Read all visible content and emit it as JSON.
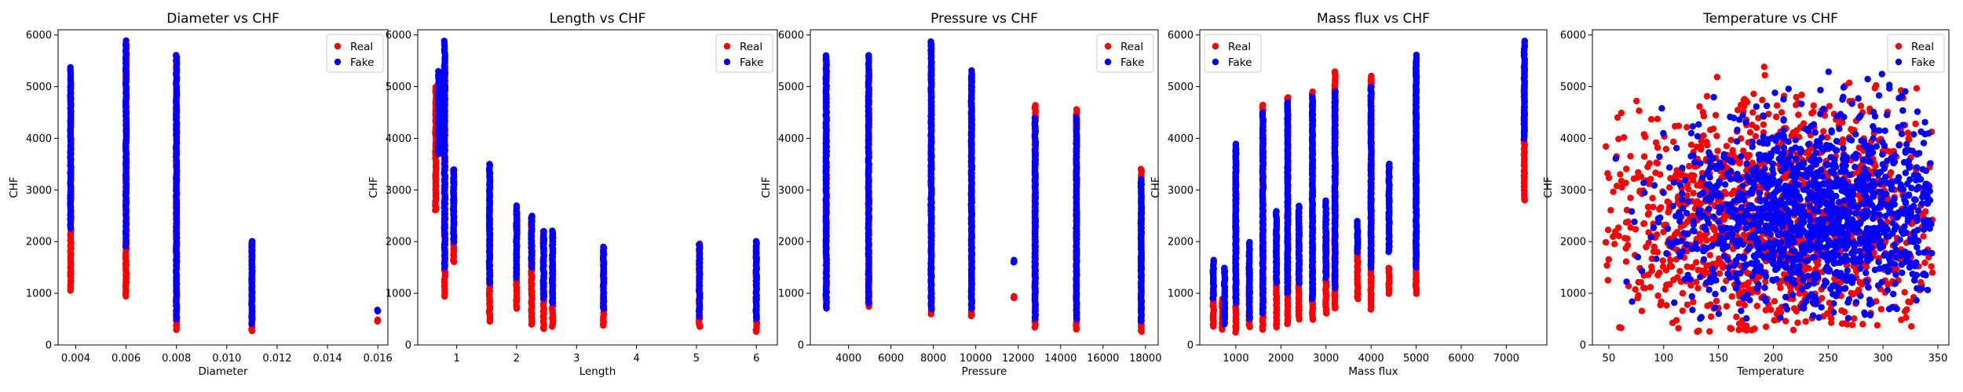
{
  "figure": {
    "background": "#ffffff"
  },
  "legend": {
    "placement_left_panels": "upper-right",
    "placement_mass_flux": "upper-left"
  },
  "colors": {
    "Real": "#ff0000",
    "Fake": "#0000ff"
  },
  "chart_data": [
    {
      "type": "scatter",
      "title": "Diameter vs CHF",
      "xlabel": "Diameter",
      "ylabel": "CHF",
      "xlim": [
        0.0033,
        0.0164
      ],
      "ylim": [
        0,
        6100
      ],
      "xticks": [
        0.004,
        0.006,
        0.008,
        0.01,
        0.012,
        0.014,
        0.016
      ],
      "xtick_labels": [
        "0.004",
        "0.006",
        "0.008",
        "0.010",
        "0.012",
        "0.014",
        "0.016"
      ],
      "yticks": [
        0,
        1000,
        2000,
        3000,
        4000,
        5000,
        6000
      ],
      "ytick_labels": [
        "0",
        "1000",
        "2000",
        "3000",
        "4000",
        "5000",
        "6000"
      ],
      "legend_position": "upper-right",
      "series": [
        {
          "name": "Real",
          "color": "#ff0000",
          "columns": [
            {
              "x": 0.0038,
              "ymin": 1050,
              "ymax": 5000
            },
            {
              "x": 0.006,
              "ymin": 950,
              "ymax": 5800
            },
            {
              "x": 0.008,
              "ymin": 300,
              "ymax": 5600
            },
            {
              "x": 0.011,
              "ymin": 280,
              "ymax": 2000
            },
            {
              "x": 0.016,
              "ymin": 460,
              "ymax": 480
            }
          ]
        },
        {
          "name": "Fake",
          "color": "#0000ff",
          "columns": [
            {
              "x": 0.0038,
              "ymin": 2250,
              "ymax": 5380
            },
            {
              "x": 0.006,
              "ymin": 1900,
              "ymax": 5880
            },
            {
              "x": 0.008,
              "ymin": 500,
              "ymax": 5600
            },
            {
              "x": 0.011,
              "ymin": 400,
              "ymax": 2000
            },
            {
              "x": 0.016,
              "ymin": 660,
              "ymax": 680
            }
          ]
        }
      ]
    },
    {
      "type": "scatter",
      "title": "Length vs CHF",
      "xlabel": "Length",
      "ylabel": "CHF",
      "xlim": [
        0.35,
        6.35
      ],
      "ylim": [
        0,
        6100
      ],
      "xticks": [
        1,
        2,
        3,
        4,
        5,
        6
      ],
      "xtick_labels": [
        "1",
        "2",
        "3",
        "4",
        "5",
        "6"
      ],
      "yticks": [
        0,
        1000,
        2000,
        3000,
        4000,
        5000,
        6000
      ],
      "ytick_labels": [
        "0",
        "1000",
        "2000",
        "3000",
        "4000",
        "5000",
        "6000"
      ],
      "legend_position": "upper-right",
      "series": [
        {
          "name": "Real",
          "color": "#ff0000",
          "columns": [
            {
              "x": 0.65,
              "ymin": 2600,
              "ymax": 5000
            },
            {
              "x": 0.8,
              "ymin": 950,
              "ymax": 5400
            },
            {
              "x": 0.95,
              "ymin": 1600,
              "ymax": 3400
            },
            {
              "x": 1.55,
              "ymin": 450,
              "ymax": 3400
            },
            {
              "x": 2.0,
              "ymin": 700,
              "ymax": 2600
            },
            {
              "x": 2.25,
              "ymin": 400,
              "ymax": 2500
            },
            {
              "x": 2.45,
              "ymin": 300,
              "ymax": 2200
            },
            {
              "x": 2.6,
              "ymin": 350,
              "ymax": 2200
            },
            {
              "x": 3.45,
              "ymin": 380,
              "ymax": 1850
            },
            {
              "x": 5.05,
              "ymin": 350,
              "ymax": 1950
            },
            {
              "x": 6.0,
              "ymin": 260,
              "ymax": 2000
            }
          ]
        },
        {
          "name": "Fake",
          "color": "#0000ff",
          "columns": [
            {
              "x": 0.7,
              "ymin": 3700,
              "ymax": 5300
            },
            {
              "x": 0.8,
              "ymin": 1500,
              "ymax": 5880
            },
            {
              "x": 0.95,
              "ymin": 2000,
              "ymax": 3400
            },
            {
              "x": 1.55,
              "ymin": 1200,
              "ymax": 3500
            },
            {
              "x": 2.0,
              "ymin": 1300,
              "ymax": 2700
            },
            {
              "x": 2.25,
              "ymin": 1500,
              "ymax": 2500
            },
            {
              "x": 2.45,
              "ymin": 900,
              "ymax": 2200
            },
            {
              "x": 2.6,
              "ymin": 800,
              "ymax": 2200
            },
            {
              "x": 3.45,
              "ymin": 700,
              "ymax": 1900
            },
            {
              "x": 5.05,
              "ymin": 550,
              "ymax": 1950
            },
            {
              "x": 6.0,
              "ymin": 500,
              "ymax": 2000
            }
          ]
        }
      ]
    },
    {
      "type": "scatter",
      "title": "Pressure vs CHF",
      "xlabel": "Pressure",
      "ylabel": "CHF",
      "xlim": [
        2200,
        18600
      ],
      "ylim": [
        0,
        6100
      ],
      "xticks": [
        4000,
        6000,
        8000,
        10000,
        12000,
        14000,
        16000,
        18000
      ],
      "xtick_labels": [
        "4000",
        "6000",
        "8000",
        "10000",
        "12000",
        "14000",
        "16000",
        "18000"
      ],
      "yticks": [
        0,
        1000,
        2000,
        3000,
        4000,
        5000,
        6000
      ],
      "ytick_labels": [
        "0",
        "1000",
        "2000",
        "3000",
        "4000",
        "5000",
        "6000"
      ],
      "legend_position": "upper-right",
      "series": [
        {
          "name": "Real",
          "color": "#ff0000",
          "columns": [
            {
              "x": 2950,
              "ymin": 700,
              "ymax": 5500
            },
            {
              "x": 4950,
              "ymin": 750,
              "ymax": 5200
            },
            {
              "x": 7900,
              "ymin": 600,
              "ymax": 5850
            },
            {
              "x": 9800,
              "ymin": 550,
              "ymax": 5200
            },
            {
              "x": 11800,
              "ymin": 900,
              "ymax": 940
            },
            {
              "x": 12800,
              "ymin": 350,
              "ymax": 4650
            },
            {
              "x": 14750,
              "ymin": 300,
              "ymax": 4550
            },
            {
              "x": 17800,
              "ymin": 250,
              "ymax": 3400
            }
          ]
        },
        {
          "name": "Fake",
          "color": "#0000ff",
          "columns": [
            {
              "x": 2950,
              "ymin": 700,
              "ymax": 5600
            },
            {
              "x": 4950,
              "ymin": 800,
              "ymax": 5600
            },
            {
              "x": 7900,
              "ymin": 700,
              "ymax": 5880
            },
            {
              "x": 9800,
              "ymin": 700,
              "ymax": 5300
            },
            {
              "x": 11800,
              "ymin": 1600,
              "ymax": 1640
            },
            {
              "x": 12800,
              "ymin": 500,
              "ymax": 4400
            },
            {
              "x": 14750,
              "ymin": 500,
              "ymax": 4400
            },
            {
              "x": 17800,
              "ymin": 450,
              "ymax": 3200
            }
          ]
        }
      ]
    },
    {
      "type": "scatter",
      "title": "Mass flux vs CHF",
      "xlabel": "Mass flux",
      "ylabel": "CHF",
      "xlim": [
        200,
        7900
      ],
      "ylim": [
        0,
        6100
      ],
      "xticks": [
        1000,
        2000,
        3000,
        4000,
        5000,
        6000,
        7000
      ],
      "xtick_labels": [
        "1000",
        "2000",
        "3000",
        "4000",
        "5000",
        "6000",
        "7000"
      ],
      "yticks": [
        0,
        1000,
        2000,
        3000,
        4000,
        5000,
        6000
      ],
      "ytick_labels": [
        "0",
        "1000",
        "2000",
        "3000",
        "4000",
        "5000",
        "6000"
      ],
      "legend_position": "upper-left",
      "series": [
        {
          "name": "Real",
          "color": "#ff0000",
          "columns": [
            {
              "x": 500,
              "ymin": 350,
              "ymax": 1400
            },
            {
              "x": 700,
              "ymin": 300,
              "ymax": 900
            },
            {
              "x": 1000,
              "ymin": 250,
              "ymax": 3800
            },
            {
              "x": 1300,
              "ymin": 350,
              "ymax": 1500
            },
            {
              "x": 1600,
              "ymin": 300,
              "ymax": 4650
            },
            {
              "x": 1900,
              "ymin": 350,
              "ymax": 2300
            },
            {
              "x": 2150,
              "ymin": 400,
              "ymax": 4800
            },
            {
              "x": 2400,
              "ymin": 500,
              "ymax": 2500
            },
            {
              "x": 2700,
              "ymin": 500,
              "ymax": 4900
            },
            {
              "x": 3000,
              "ymin": 600,
              "ymax": 2200
            },
            {
              "x": 3200,
              "ymin": 700,
              "ymax": 5300
            },
            {
              "x": 3700,
              "ymin": 900,
              "ymax": 2200
            },
            {
              "x": 4000,
              "ymin": 700,
              "ymax": 5200
            },
            {
              "x": 4400,
              "ymin": 1000,
              "ymax": 1500
            },
            {
              "x": 5000,
              "ymin": 1000,
              "ymax": 5500
            },
            {
              "x": 7400,
              "ymin": 2800,
              "ymax": 5400
            }
          ]
        },
        {
          "name": "Fake",
          "color": "#0000ff",
          "columns": [
            {
              "x": 500,
              "ymin": 900,
              "ymax": 1650
            },
            {
              "x": 750,
              "ymin": 400,
              "ymax": 1500
            },
            {
              "x": 1000,
              "ymin": 800,
              "ymax": 3900
            },
            {
              "x": 1300,
              "ymin": 500,
              "ymax": 2000
            },
            {
              "x": 1600,
              "ymin": 600,
              "ymax": 4500
            },
            {
              "x": 1900,
              "ymin": 1200,
              "ymax": 2600
            },
            {
              "x": 2150,
              "ymin": 1000,
              "ymax": 4700
            },
            {
              "x": 2400,
              "ymin": 1200,
              "ymax": 2700
            },
            {
              "x": 2700,
              "ymin": 900,
              "ymax": 4800
            },
            {
              "x": 3000,
              "ymin": 1300,
              "ymax": 2800
            },
            {
              "x": 3200,
              "ymin": 1100,
              "ymax": 4900
            },
            {
              "x": 3700,
              "ymin": 1800,
              "ymax": 2400
            },
            {
              "x": 4000,
              "ymin": 1500,
              "ymax": 5000
            },
            {
              "x": 4400,
              "ymin": 1800,
              "ymax": 3500
            },
            {
              "x": 5000,
              "ymin": 1500,
              "ymax": 5600
            },
            {
              "x": 7400,
              "ymin": 4000,
              "ymax": 5880
            }
          ]
        }
      ]
    },
    {
      "type": "scatter",
      "title": "Temperature vs CHF",
      "xlabel": "Temperature",
      "ylabel": "CHF",
      "xlim": [
        35,
        360
      ],
      "ylim": [
        0,
        6100
      ],
      "xticks": [
        50,
        100,
        150,
        200,
        250,
        300,
        350
      ],
      "xtick_labels": [
        "50",
        "100",
        "150",
        "200",
        "250",
        "300",
        "350"
      ],
      "yticks": [
        0,
        1000,
        2000,
        3000,
        4000,
        5000,
        6000
      ],
      "ytick_labels": [
        "0",
        "1000",
        "2000",
        "3000",
        "4000",
        "5000",
        "6000"
      ],
      "legend_position": "upper-right",
      "series": [
        {
          "name": "Real",
          "color": "#ff0000",
          "cloud": {
            "xmin": 45,
            "xmax": 345,
            "ymin": 250,
            "ymax": 5400,
            "center_x": 205,
            "center_y": 2400,
            "spread_x": 85,
            "spread_y": 1150
          }
        },
        {
          "name": "Fake",
          "color": "#0000ff",
          "cloud": {
            "xmin": 55,
            "xmax": 345,
            "ymin": 500,
            "ymax": 5880,
            "center_x": 240,
            "center_y": 2500,
            "spread_x": 70,
            "spread_y": 950
          }
        }
      ]
    }
  ]
}
